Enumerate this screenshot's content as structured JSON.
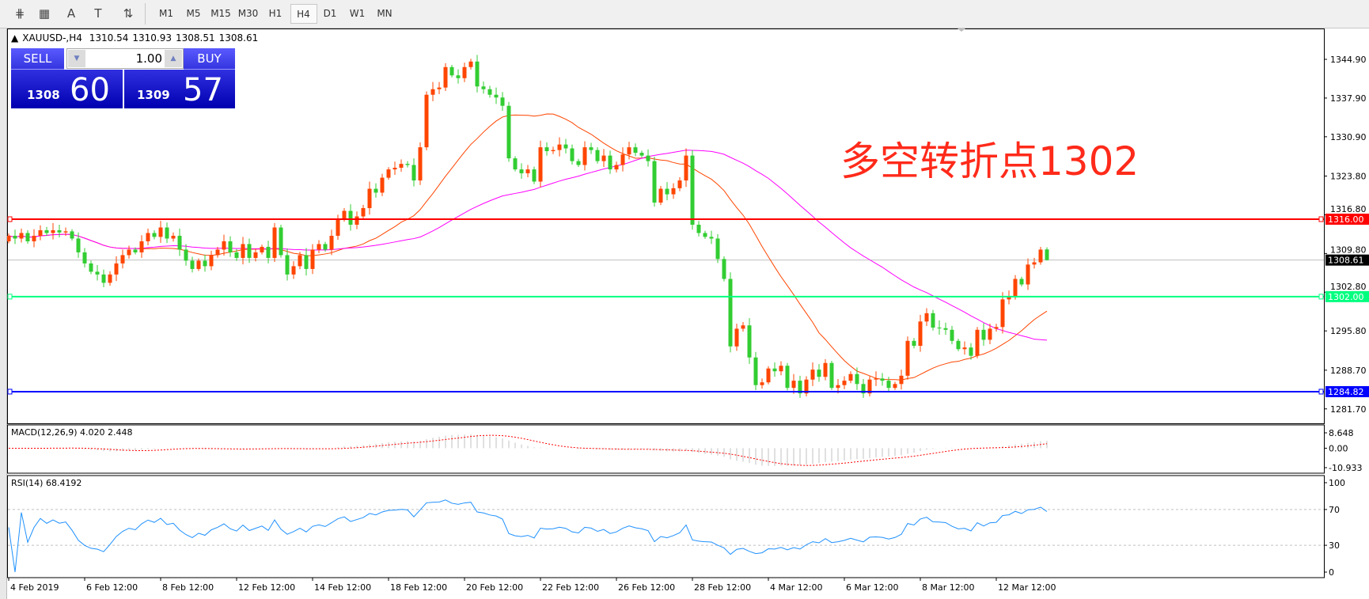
{
  "toolbar": {
    "icons": [
      "elliott-wave-icon",
      "fibonacci-icon",
      "text-icon",
      "text-label-icon",
      "arrows-icon"
    ],
    "icon_glyphs": [
      "⋕",
      "▦",
      "A",
      "T",
      "⇅"
    ],
    "timeframes": [
      "M1",
      "M5",
      "M15",
      "M30",
      "H1",
      "H4",
      "D1",
      "W1",
      "MN"
    ],
    "active_timeframe": "H4"
  },
  "header": {
    "symbol": "XAUUSD-,H4",
    "open": "1310.54",
    "high": "1310.93",
    "low": "1308.51",
    "close": "1308.61"
  },
  "trade_panel": {
    "sell_label": "SELL",
    "buy_label": "BUY",
    "lot": "1.00",
    "sell_big": "1308",
    "sell_small": "60",
    "buy_big": "1309",
    "buy_small": "57"
  },
  "annotation": "多空转折点1302",
  "chart_data": {
    "type": "candlestick",
    "symbol": "XAUUSD-",
    "timeframe": "H4",
    "bull_color": "#FF4500",
    "bear_color": "#32CD32",
    "first_open": 1312,
    "closes": [
      1313,
      1312.5,
      1313.5,
      1312,
      1313,
      1314,
      1313.5,
      1314,
      1313.6,
      1313.8,
      1312.5,
      1310,
      1308,
      1306.5,
      1306,
      1304.5,
      1306,
      1308,
      1309.5,
      1310.5,
      1310,
      1312,
      1313.5,
      1312.8,
      1314.5,
      1312.5,
      1313,
      1310.5,
      1308.5,
      1307,
      1308.5,
      1307.5,
      1309.5,
      1310.5,
      1312,
      1310,
      1309,
      1311.5,
      1309,
      1310,
      1311,
      1309,
      1314.5,
      1309.5,
      1306,
      1307.5,
      1309.5,
      1307,
      1310.5,
      1311.5,
      1310.5,
      1313,
      1316,
      1317.5,
      1315,
      1316.5,
      1318,
      1321.5,
      1320.8,
      1323.5,
      1325,
      1325.3,
      1326,
      1325.8,
      1323,
      1329,
      1338.5,
      1339.5,
      1339.8,
      1343.5,
      1342,
      1341.5,
      1343.5,
      1344.5,
      1340,
      1339.5,
      1338.5,
      1338,
      1336.5,
      1327,
      1325,
      1324.3,
      1325,
      1322.8,
      1329,
      1328.3,
      1328.5,
      1329.5,
      1328.8,
      1326.5,
      1325.8,
      1329,
      1328.5,
      1326.5,
      1327.5,
      1325,
      1325.8,
      1327.7,
      1329,
      1328,
      1327.5,
      1326.5,
      1319,
      1321.5,
      1320.5,
      1321.6,
      1323,
      1327.5,
      1315,
      1313.5,
      1312.8,
      1312.5,
      1308.8,
      1305.2,
      1293,
      1296.2,
      1296.8,
      1291,
      1286,
      1286.5,
      1289,
      1288.5,
      1289.5,
      1285.5,
      1286.8,
      1284.5,
      1287,
      1288.8,
      1287.5,
      1290,
      1285.5,
      1286,
      1286.8,
      1288,
      1286.2,
      1284.5,
      1287,
      1287.2,
      1286.8,
      1285.5,
      1286.2,
      1287.7,
      1294,
      1293.1,
      1297.5,
      1299,
      1296.4,
      1296.3,
      1296,
      1294,
      1292.5,
      1292.8,
      1291.3,
      1296,
      1294.2,
      1296.2,
      1296.5,
      1301.5,
      1302.1,
      1305.2,
      1304.2,
      1307.8,
      1308.2,
      1310.5,
      1308.61
    ],
    "last_candle": {
      "open": 1310.54,
      "high": 1310.93,
      "low": 1308.51,
      "close": 1308.61
    },
    "moving_averages": [
      {
        "color": "#FF4500"
      },
      {
        "color": "#FF00FF"
      }
    ],
    "ylim": [
      1278.5,
      1349.5
    ],
    "y_ticks": [
      "1344.90",
      "1337.90",
      "1330.90",
      "1323.80",
      "1316.80",
      "1309.80",
      "1302.80",
      "1295.80",
      "1288.70",
      "1281.70"
    ],
    "x_ticks": [
      "4 Feb 2019",
      "6 Feb 12:00",
      "8 Feb 12:00",
      "12 Feb 12:00",
      "14 Feb 12:00",
      "18 Feb 12:00",
      "20 Feb 12:00",
      "22 Feb 12:00",
      "26 Feb 12:00",
      "28 Feb 12:00",
      "4 Mar 12:00",
      "6 Mar 12:00",
      "8 Mar 12:00",
      "12 Mar 12:00"
    ],
    "horizontal_lines": [
      {
        "price": 1316.0,
        "label": "1316.00",
        "color": "#FF0000"
      },
      {
        "price": 1302.0,
        "label": "1302.00",
        "color": "#00FF7F"
      },
      {
        "price": 1284.82,
        "label": "1284.82",
        "color": "#0000FF"
      }
    ],
    "bid_line": {
      "price": 1308.61,
      "label": "1308.61",
      "color": "#C0C0C0"
    },
    "macd": {
      "label": "MACD(12,26,9) 4.020 2.448",
      "ticks": [
        "8.648",
        "0.00",
        "-10.933"
      ],
      "max": 8.648,
      "min": -10.933,
      "signal_color": "#FF0000",
      "hist_color": "#C0C0C0"
    },
    "rsi": {
      "label": "RSI(14) 68.4192",
      "ticks": [
        "100",
        "70",
        "30",
        "0"
      ],
      "levels": [
        70,
        30
      ],
      "color": "#1E90FF"
    }
  }
}
